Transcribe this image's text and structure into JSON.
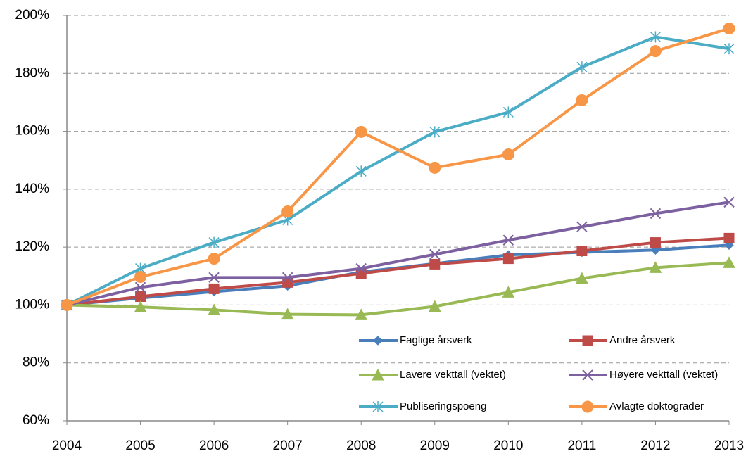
{
  "chart_data": {
    "type": "line",
    "categories": [
      "2004",
      "2005",
      "2006",
      "2007",
      "2008",
      "2009",
      "2010",
      "2011",
      "2012",
      "2013"
    ],
    "ylim": [
      60,
      200
    ],
    "yticks": [
      {
        "value": 60,
        "label": "60%"
      },
      {
        "value": 80,
        "label": "80%"
      },
      {
        "value": 100,
        "label": "100%"
      },
      {
        "value": 120,
        "label": "120%"
      },
      {
        "value": 140,
        "label": "140%"
      },
      {
        "value": 160,
        "label": "160%"
      },
      {
        "value": 180,
        "label": "180%"
      },
      {
        "value": 200,
        "label": "200%"
      }
    ],
    "grid": true,
    "series": [
      {
        "name": "Faglige årsverk",
        "color": "#4a7ebb",
        "marker": "diamond",
        "values": [
          100,
          102.4,
          104.6,
          106.6,
          111.4,
          114.3,
          117.3,
          118.2,
          119,
          120.7
        ]
      },
      {
        "name": "Andre årsverk",
        "color": "#be4b48",
        "marker": "square",
        "values": [
          100,
          102.9,
          105.6,
          107.8,
          110.9,
          114.1,
          116,
          118.7,
          121.6,
          123.1
        ]
      },
      {
        "name": "Lavere vekttall (vektet)",
        "color": "#98b954",
        "marker": "triangle",
        "values": [
          100,
          99.3,
          98.3,
          96.8,
          96.6,
          99.5,
          104.4,
          109.2,
          112.9,
          114.6
        ]
      },
      {
        "name": "Høyere vekttall (vektet)",
        "color": "#7d60a0",
        "marker": "x",
        "values": [
          100,
          106.1,
          109.5,
          109.5,
          112.6,
          117.5,
          122.4,
          127,
          131.6,
          135.5
        ]
      },
      {
        "name": "Publiseringspoeng",
        "color": "#4bacc6",
        "marker": "star",
        "values": [
          100,
          112.6,
          121.6,
          129.4,
          146.2,
          159.8,
          166.6,
          182.2,
          192.6,
          188.5
        ]
      },
      {
        "name": "Avlagte doktograder",
        "color": "#f79646",
        "marker": "circle",
        "values": [
          100,
          109.7,
          116,
          132.3,
          159.8,
          147.4,
          152,
          170.7,
          187.7,
          195.5
        ]
      }
    ]
  }
}
